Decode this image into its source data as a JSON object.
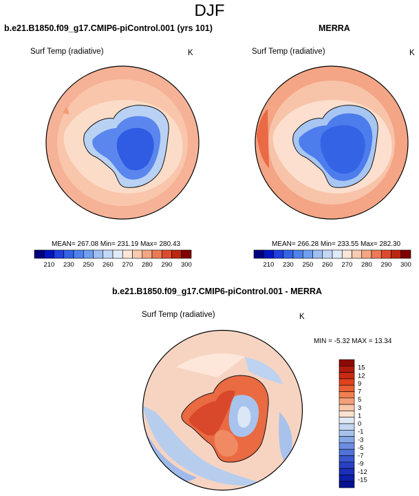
{
  "figure": {
    "title": "DJF"
  },
  "panels": [
    {
      "title": "b.e21.B1850.f09_g17.CMIP6-piControl.001 (yrs 101)",
      "variable": "Surf Temp (radiative)",
      "units": "K",
      "stats": "MEAN= 267.08  Min= 231.19  Max= 280.43"
    },
    {
      "title": "MERRA",
      "variable": "Surf Temp (radiative)",
      "units": "K",
      "stats": "MEAN= 266.28  Min= 233.55  Max= 282.30"
    },
    {
      "title": "b.e21.B1850.f09_g17.CMIP6-piControl.001 - MERRA",
      "variable": "Surf Temp (radiative)",
      "units": "K",
      "stats": "MIN =  -5.32 MAX =  13.34"
    }
  ],
  "chart_data": [
    {
      "type": "heatmap",
      "title": "b.e21.B1850.f09_g17.CMIP6-piControl.001 (yrs 101)",
      "variable": "Surf Temp (radiative)",
      "units": "K",
      "projection": "south polar stereographic",
      "mean": 267.08,
      "min": 231.19,
      "max": 280.43,
      "colorbar": {
        "orientation": "horizontal",
        "tick_labels": [
          "210",
          "230",
          "250",
          "260",
          "270",
          "280",
          "290",
          "300"
        ],
        "colors": [
          "#00007f",
          "#0014bf",
          "#1f3fdf",
          "#3464e6",
          "#4f82ec",
          "#6e9ff0",
          "#9fbff2",
          "#c3d8f5",
          "#e0ebf7",
          "#fbe6d8",
          "#f9cbb1",
          "#f4a582",
          "#ec7a57",
          "#dd4b2f",
          "#bb2611",
          "#7f0000"
        ]
      }
    },
    {
      "type": "heatmap",
      "title": "MERRA",
      "variable": "Surf Temp (radiative)",
      "units": "K",
      "projection": "south polar stereographic",
      "mean": 266.28,
      "min": 233.55,
      "max": 282.3,
      "colorbar": {
        "orientation": "horizontal",
        "tick_labels": [
          "210",
          "230",
          "250",
          "260",
          "270",
          "280",
          "290",
          "300"
        ],
        "colors": [
          "#00007f",
          "#0014bf",
          "#1f3fdf",
          "#3464e6",
          "#4f82ec",
          "#6e9ff0",
          "#9fbff2",
          "#c3d8f5",
          "#e0ebf7",
          "#fbe6d8",
          "#f9cbb1",
          "#f4a582",
          "#ec7a57",
          "#dd4b2f",
          "#bb2611",
          "#7f0000"
        ]
      }
    },
    {
      "type": "heatmap",
      "title": "b.e21.B1850.f09_g17.CMIP6-piControl.001 - MERRA",
      "variable": "Surf Temp (radiative)",
      "units": "K",
      "projection": "south polar stereographic",
      "min": -5.32,
      "max": 13.34,
      "colorbar": {
        "orientation": "vertical",
        "tick_labels": [
          "15",
          "12",
          "9",
          "7",
          "5",
          "3",
          "1",
          "0",
          "-1",
          "-3",
          "-5",
          "-7",
          "-9",
          "-12",
          "-15"
        ],
        "colors": [
          "#8c0a05",
          "#b01b0c",
          "#c92a12",
          "#de421e",
          "#ea6034",
          "#f07f52",
          "#f5a07a",
          "#f9c7a9",
          "#fbe2cf",
          "#dfe9f6",
          "#c4d6f1",
          "#a6c1ec",
          "#86a8e6",
          "#6b8ee0",
          "#4f72d9",
          "#3a58cf",
          "#2840c4",
          "#1a2eb8",
          "#0d1fa8",
          "#05128f"
        ]
      }
    }
  ],
  "colors": {
    "ocean_warm": "#f9c7a6",
    "ocean_outer": "#f5a687",
    "ice_edge": "#fce8da",
    "antarctica_blue": "#3a69e8",
    "antarctica_core": "#2d55e0",
    "diff_red": "#e8603a",
    "diff_blue": "#9db8ea"
  }
}
